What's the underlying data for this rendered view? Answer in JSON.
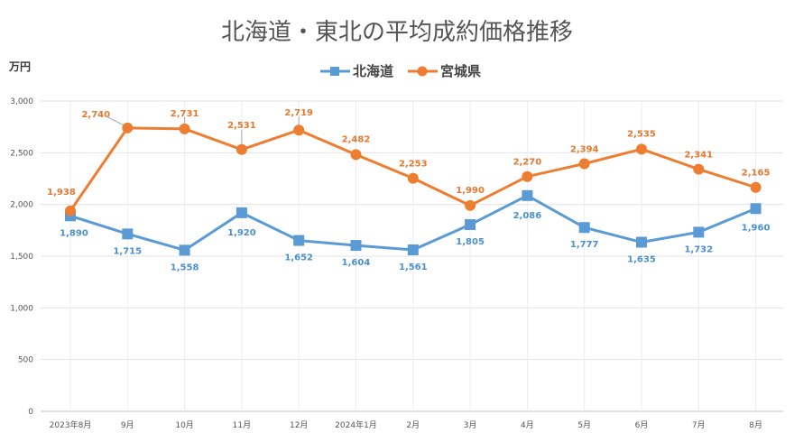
{
  "chart_data": {
    "type": "line",
    "title": "北海道・東北の平均成約価格推移",
    "ylabel": "万円",
    "ylim": [
      0,
      3000
    ],
    "yticks": [
      0,
      500,
      1000,
      1500,
      2000,
      2500,
      3000
    ],
    "ytick_labels": [
      "0",
      "500",
      "1,000",
      "1,500",
      "2,000",
      "2,500",
      "3,000"
    ],
    "grid": true,
    "legend_position": "top",
    "categories": [
      "2023年8月",
      "9月",
      "10月",
      "11月",
      "12月",
      "2024年1月",
      "2月",
      "3月",
      "4月",
      "5月",
      "6月",
      "7月",
      "8月"
    ],
    "series": [
      {
        "name": "北海道",
        "color": "#5B9BD5",
        "marker": "square",
        "values": [
          1890,
          1715,
          1558,
          1920,
          1652,
          1604,
          1561,
          1805,
          2086,
          1777,
          1635,
          1732,
          1960
        ],
        "labels": [
          "1,890",
          "1,715",
          "1,558",
          "1,920",
          "1,652",
          "1,604",
          "1,561",
          "1,805",
          "2,086",
          "1,777",
          "1,635",
          "1,732",
          "1,960"
        ]
      },
      {
        "name": "宮城県",
        "color": "#ED7D31",
        "marker": "circle",
        "values": [
          1938,
          2740,
          2731,
          2531,
          2719,
          2482,
          2253,
          1990,
          2270,
          2394,
          2535,
          2341,
          2165
        ],
        "labels": [
          "1,938",
          "2,740",
          "2,731",
          "2,531",
          "2,719",
          "2,482",
          "2,253",
          "1,990",
          "2,270",
          "2,394",
          "2,535",
          "2,341",
          "2,165"
        ]
      }
    ]
  }
}
